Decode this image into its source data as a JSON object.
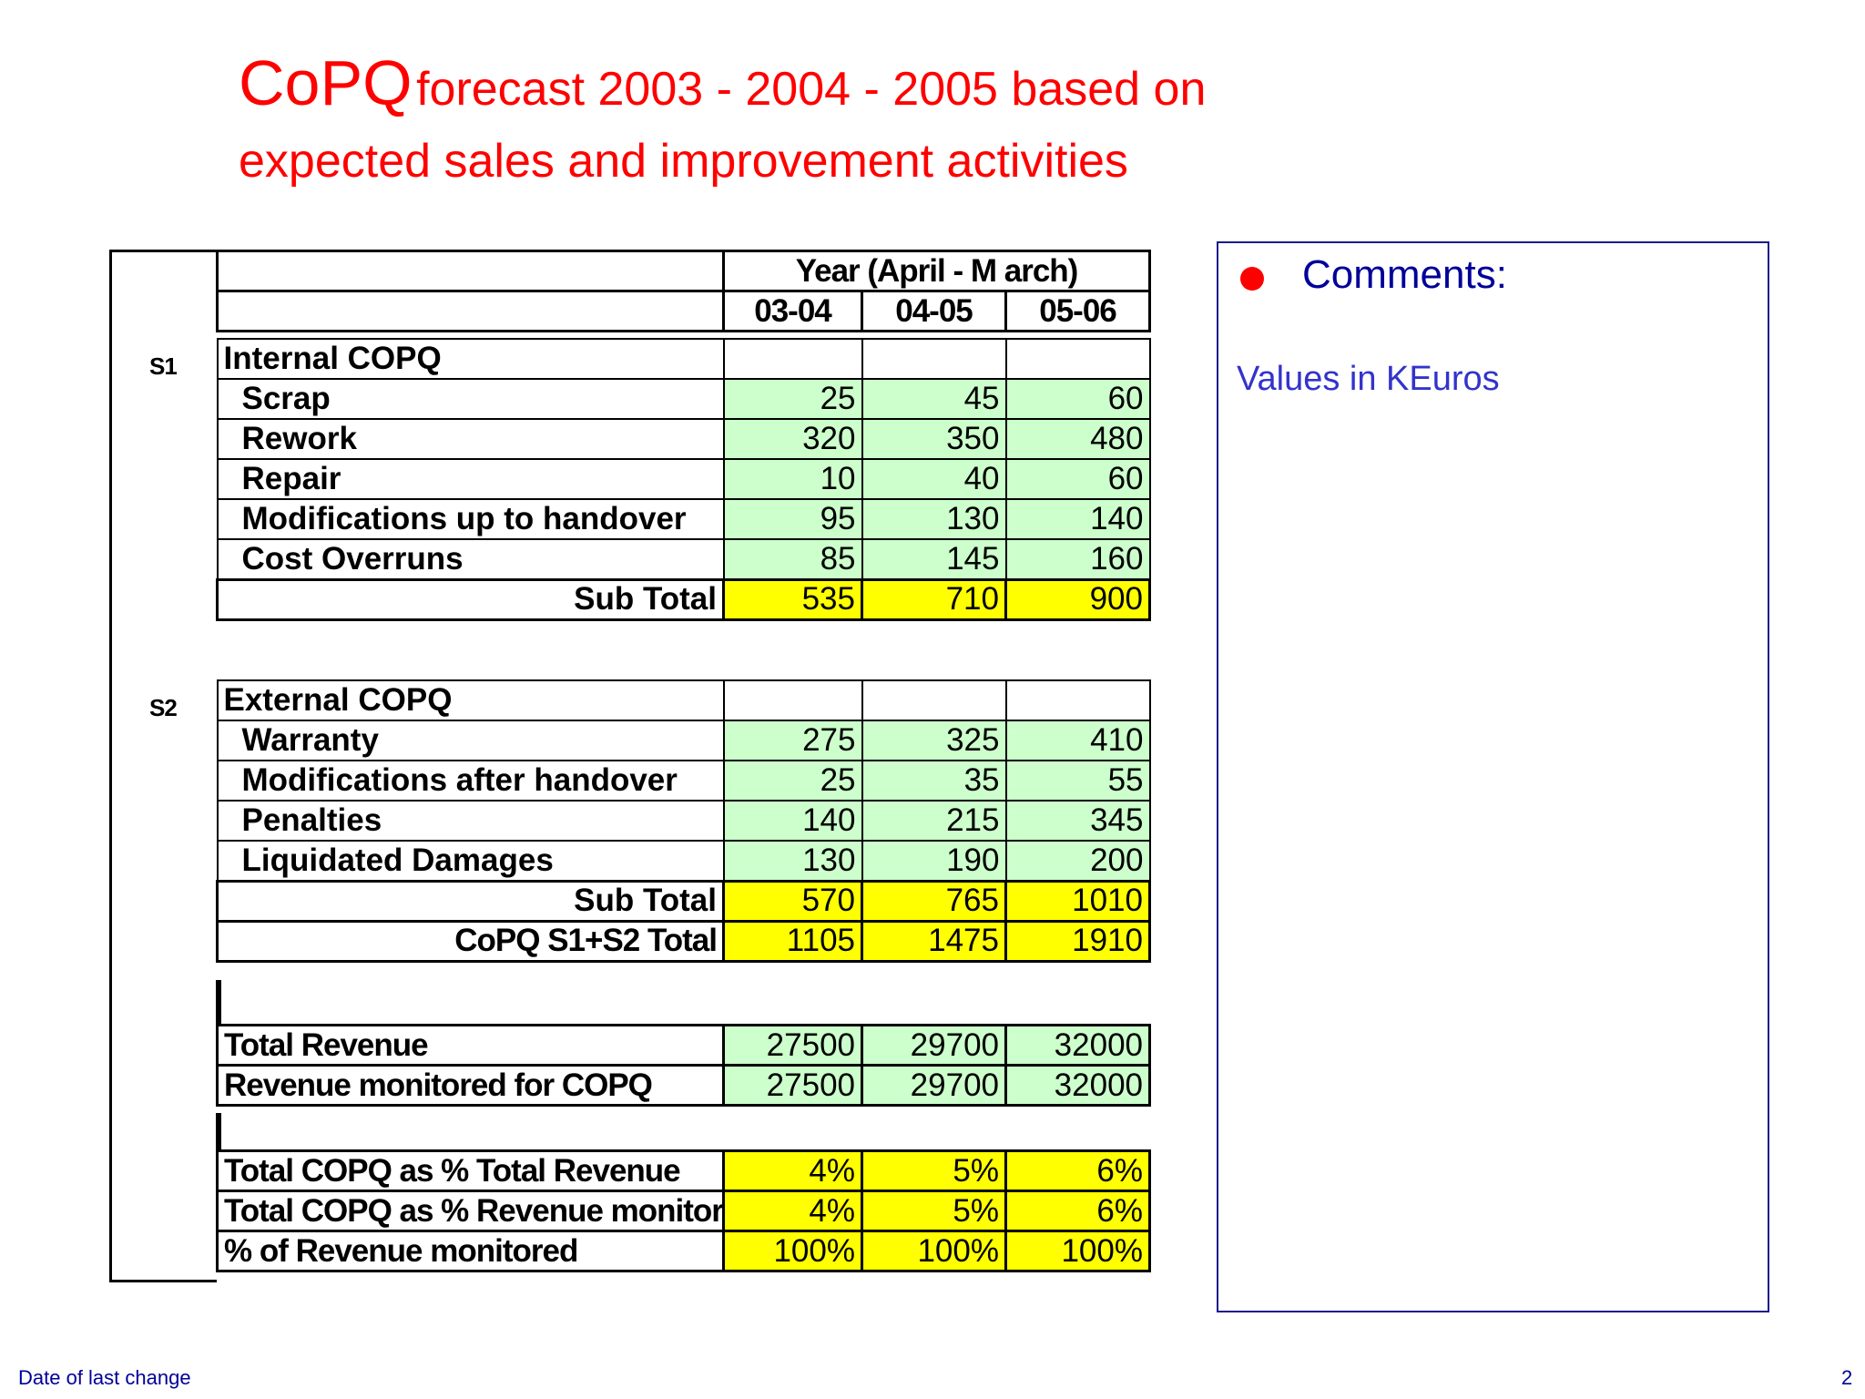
{
  "title": {
    "big": "CoPQ",
    "line1_rest": "forecast 2003 - 2004  - 2005 based on",
    "line2": "expected sales and improvement activities"
  },
  "header": {
    "year_label": "Year (April - M arch)",
    "years": [
      "03-04",
      "04-05",
      "05-06"
    ]
  },
  "s1": {
    "tag": "S1",
    "heading": "Internal COPQ",
    "rows": [
      {
        "label": "Scrap",
        "values": [
          "25",
          "45",
          "60"
        ]
      },
      {
        "label": "Rework",
        "values": [
          "320",
          "350",
          "480"
        ]
      },
      {
        "label": "Repair",
        "values": [
          "10",
          "40",
          "60"
        ]
      },
      {
        "label": "Modifications up to handover",
        "values": [
          "95",
          "130",
          "140"
        ]
      },
      {
        "label": "Cost Overruns",
        "values": [
          "85",
          "145",
          "160"
        ]
      }
    ],
    "subtotal": {
      "label": "Sub Total",
      "values": [
        "535",
        "710",
        "900"
      ]
    }
  },
  "s2": {
    "tag": "S2",
    "heading": "External COPQ",
    "rows": [
      {
        "label": "Warranty",
        "values": [
          "275",
          "325",
          "410"
        ]
      },
      {
        "label": "Modifications after handover",
        "values": [
          "25",
          "35",
          "55"
        ]
      },
      {
        "label": "Penalties",
        "values": [
          "140",
          "215",
          "345"
        ]
      },
      {
        "label": "Liquidated Damages",
        "values": [
          "130",
          "190",
          "200"
        ]
      }
    ],
    "subtotal": {
      "label": "Sub Total",
      "values": [
        "570",
        "765",
        "1010"
      ]
    },
    "total": {
      "label": "CoPQ S1+S2   Total",
      "values": [
        "1105",
        "1475",
        "1910"
      ]
    }
  },
  "revenue": [
    {
      "label": "Total Revenue",
      "values": [
        "27500",
        "29700",
        "32000"
      ]
    },
    {
      "label": "Revenue monitored for COPQ",
      "values": [
        "27500",
        "29700",
        "32000"
      ]
    }
  ],
  "ratios": [
    {
      "label": "Total COPQ as % Total Revenue",
      "values": [
        "4%",
        "5%",
        "6%"
      ]
    },
    {
      "label": "Total COPQ as % Revenue monitored",
      "values": [
        "4%",
        "5%",
        "6%"
      ]
    },
    {
      "label": "% of Revenue monitored",
      "values": [
        "100%",
        "100%",
        "100%"
      ]
    }
  ],
  "comments": {
    "title": "Comments:",
    "note": "Values in KEuros",
    "bullet_color": "#ff0000"
  },
  "footer": {
    "left": "Date of last change",
    "page": "2"
  }
}
